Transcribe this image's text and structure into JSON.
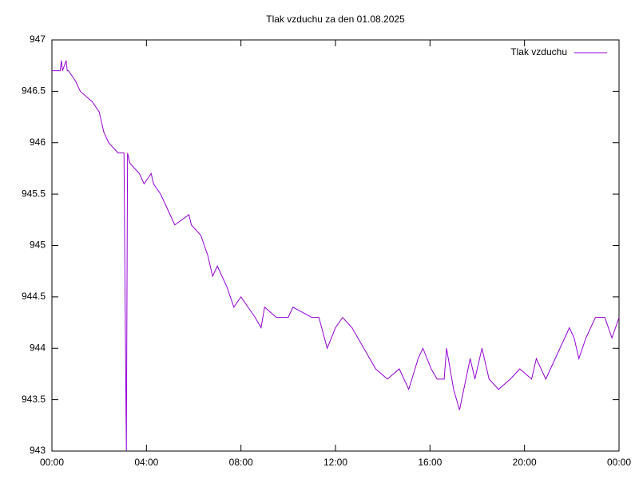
{
  "chart_data": {
    "type": "line",
    "title": "Tlak vzduchu za den 01.08.2025",
    "x": [
      0,
      0.35,
      0.4,
      0.45,
      0.6,
      0.65,
      0.7,
      1.0,
      1.2,
      1.7,
      2.0,
      2.2,
      2.4,
      2.8,
      3.05,
      3.1,
      3.15,
      3.2,
      3.3,
      3.7,
      3.9,
      4.2,
      4.3,
      4.6,
      4.8,
      5.0,
      5.2,
      5.8,
      5.9,
      6.3,
      6.6,
      6.8,
      7.0,
      7.4,
      7.7,
      8.0,
      8.3,
      8.6,
      8.85,
      9.0,
      9.5,
      10.0,
      10.2,
      11.0,
      11.3,
      11.65,
      12.0,
      12.3,
      12.7,
      13.2,
      13.7,
      14.2,
      14.7,
      15.1,
      15.5,
      15.7,
      16.05,
      16.3,
      16.6,
      16.7,
      17.0,
      17.25,
      17.7,
      17.9,
      18.2,
      18.5,
      18.9,
      19.4,
      19.8,
      20.3,
      20.5,
      20.9,
      21.1,
      21.5,
      21.9,
      22.1,
      22.3,
      22.6,
      23.0,
      23.4,
      23.7,
      24.0
    ],
    "series": [
      {
        "name": "Tlak vzduchu",
        "color": "#9400d3",
        "values": [
          946.7,
          946.7,
          946.8,
          946.7,
          946.8,
          946.7,
          946.7,
          946.6,
          946.5,
          946.4,
          946.3,
          946.1,
          946.0,
          945.9,
          945.9,
          944.4,
          943.0,
          945.9,
          945.8,
          945.7,
          945.6,
          945.7,
          945.6,
          945.5,
          945.4,
          945.3,
          945.2,
          945.3,
          945.2,
          945.1,
          944.9,
          944.7,
          944.8,
          944.6,
          944.4,
          944.5,
          944.4,
          944.3,
          944.2,
          944.4,
          944.3,
          944.3,
          944.4,
          944.3,
          944.3,
          944.0,
          944.2,
          944.3,
          944.2,
          944.0,
          943.8,
          943.7,
          943.8,
          943.6,
          943.9,
          944.0,
          943.8,
          943.7,
          943.7,
          944.0,
          943.6,
          943.4,
          943.9,
          943.7,
          944.0,
          943.7,
          943.6,
          943.7,
          943.8,
          943.7,
          943.9,
          943.7,
          943.8,
          944.0,
          944.2,
          944.1,
          943.9,
          944.1,
          944.3,
          944.3,
          944.1,
          944.3
        ]
      }
    ],
    "xlim": [
      0,
      24
    ],
    "xticks": [
      {
        "value": 0,
        "label": "00:00"
      },
      {
        "value": 4,
        "label": "04:00"
      },
      {
        "value": 8,
        "label": "08:00"
      },
      {
        "value": 12,
        "label": "12:00"
      },
      {
        "value": 16,
        "label": "16:00"
      },
      {
        "value": 20,
        "label": "20:00"
      },
      {
        "value": 24,
        "label": "00:00"
      }
    ],
    "ylim": [
      943,
      947
    ],
    "yticks": [
      943,
      943.5,
      944,
      944.5,
      945,
      945.5,
      946,
      946.5,
      947
    ],
    "legend": "top-right"
  }
}
